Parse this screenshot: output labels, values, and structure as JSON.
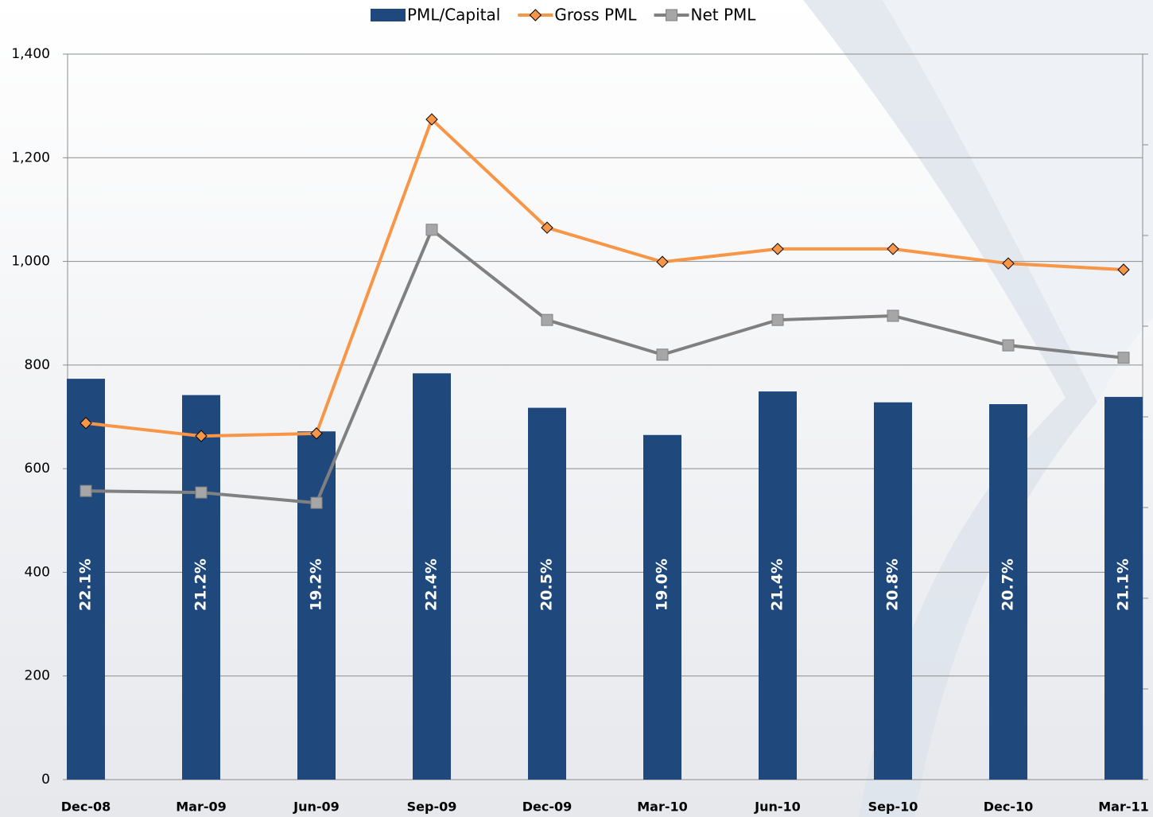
{
  "chart_data": {
    "type": "bar_line",
    "categories": [
      "Dec-08",
      "Mar-09",
      "Jun-09",
      "Sep-09",
      "Dec-09",
      "Mar-10",
      "Jun-10",
      "Sep-10",
      "Dec-10",
      "Mar-11"
    ],
    "series": [
      {
        "name": "PML/Capital",
        "type": "bar",
        "axis": "y2",
        "color": "#1f497d",
        "values": [
          22.1,
          21.2,
          19.2,
          22.4,
          20.5,
          19.0,
          21.4,
          20.8,
          20.7,
          21.1
        ],
        "value_labels": [
          "22.1%",
          "21.2%",
          "19.2%",
          "22.4%",
          "20.5%",
          "19.0%",
          "21.4%",
          "20.8%",
          "20.7%",
          "21.1%"
        ]
      },
      {
        "name": "Gross PML",
        "type": "line",
        "marker": "diamond",
        "color": "#f79646",
        "values": [
          688,
          663,
          668,
          1274,
          1065,
          999,
          1024,
          1024,
          996,
          984
        ]
      },
      {
        "name": "Net PML",
        "type": "line",
        "marker": "square",
        "color": "#808080",
        "values": [
          557,
          554,
          534,
          1061,
          887,
          820,
          887,
          895,
          838,
          814
        ]
      }
    ],
    "ylim": [
      0,
      1400
    ],
    "yticks": [
      0,
      200,
      400,
      600,
      800,
      {
        "value": 1000,
        "label": "1,000"
      },
      {
        "value": 1200,
        "label": "1,200"
      },
      {
        "value": 1400,
        "label": "1,400"
      }
    ],
    "y2lim": [
      0,
      40
    ],
    "y2ticks": [
      0,
      5,
      10,
      15,
      20,
      25,
      30,
      35,
      40
    ],
    "grid": true,
    "legend": "top"
  }
}
